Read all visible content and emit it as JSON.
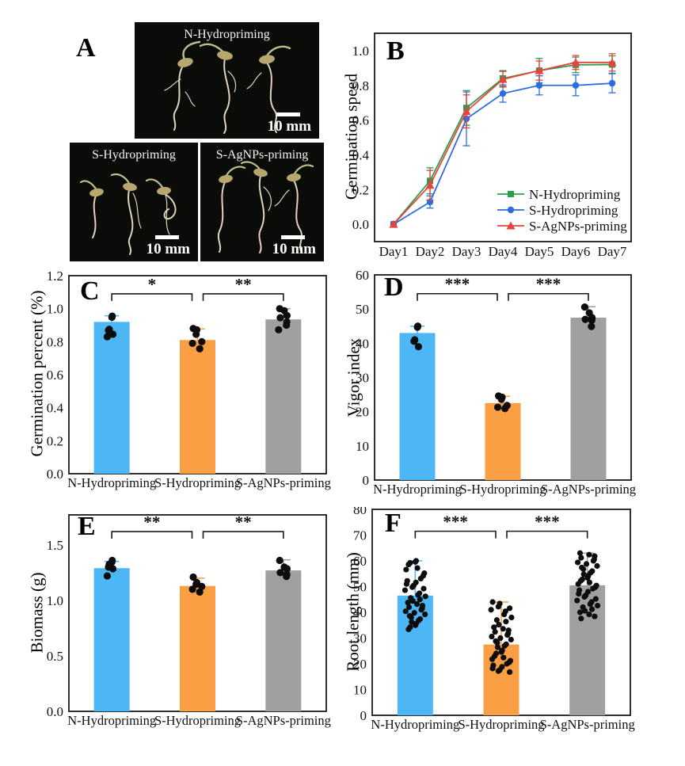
{
  "panel_labels": {
    "a": "A",
    "b": "B",
    "c": "C",
    "d": "D",
    "e": "E",
    "f": "F"
  },
  "photos": [
    {
      "title": "N-Hydropriming",
      "scale_text": "10 mm"
    },
    {
      "title": "S-Hydropriming",
      "scale_text": "10 mm"
    },
    {
      "title": "S-AgNPs-priming",
      "scale_text": "10 mm"
    }
  ],
  "colors": {
    "bar_blue": "#4db6f5",
    "bar_orange": "#fa9f44",
    "bar_gray": "#a0a0a0",
    "line_green": "#2e9d4b",
    "line_blue": "#2d6cdf",
    "line_red": "#e8433c",
    "dot_black": "#0d0d0d"
  },
  "chart_data": [
    {
      "svg": "chart-b",
      "panel": "B",
      "type": "line",
      "ylabel": "Germination speed",
      "x_categories": [
        "Day1",
        "Day2",
        "Day3",
        "Day4",
        "Day5",
        "Day6",
        "Day7"
      ],
      "ylim": [
        -0.1,
        1.1
      ],
      "yticks": [
        "0.0",
        "0.2",
        "0.4",
        "0.6",
        "0.8",
        "1.0"
      ],
      "grid": false,
      "legend_position": "bottom-right",
      "series": [
        {
          "name": "N-Hydropriming",
          "color": "#2e9d4b",
          "marker": "square",
          "values": [
            0.0,
            0.25,
            0.67,
            0.84,
            0.885,
            0.918,
            0.92
          ],
          "errors": [
            0.004,
            0.075,
            0.1,
            0.045,
            0.07,
            0.045,
            0.05
          ]
        },
        {
          "name": "S-Hydropriming",
          "color": "#2d6cdf",
          "marker": "circle",
          "values": [
            0.0,
            0.128,
            0.607,
            0.753,
            0.8,
            0.8,
            0.812
          ],
          "errors": [
            0.004,
            0.035,
            0.155,
            0.05,
            0.055,
            0.06,
            0.055
          ]
        },
        {
          "name": "S-AgNPs-priming",
          "color": "#e8433c",
          "marker": "triangle",
          "values": [
            0.0,
            0.225,
            0.65,
            0.835,
            0.885,
            0.932,
            0.932
          ],
          "errors": [
            0.004,
            0.085,
            0.095,
            0.045,
            0.055,
            0.04,
            0.05
          ]
        }
      ]
    },
    {
      "svg": "chart-c",
      "panel": "C",
      "type": "bar",
      "ylabel": "Germination percent (%)",
      "categories": [
        "N-Hydropriming",
        "S-Hydropriming",
        "S-AgNPs-priming"
      ],
      "values": [
        0.92,
        0.81,
        0.935
      ],
      "errors": [
        0.037,
        0.067,
        0.065
      ],
      "colors": [
        "#4db6f5",
        "#fa9f44",
        "#a0a0a0"
      ],
      "ylim": [
        0,
        1.2
      ],
      "yticks": [
        "0.0",
        "0.2",
        "0.4",
        "0.6",
        "0.8",
        "1.0",
        "1.2"
      ],
      "dot_values": [
        [
          0.955,
          0.948,
          0.875,
          0.868,
          0.845,
          0.83
        ],
        [
          0.88,
          0.872,
          0.845,
          0.8,
          0.79,
          0.757
        ],
        [
          1.0,
          0.988,
          0.958,
          0.945,
          0.92,
          0.9,
          0.872
        ]
      ],
      "significance": [
        {
          "from": 0,
          "to": 1,
          "label": "*",
          "y": 1.09
        },
        {
          "from": 1,
          "to": 2,
          "label": "**",
          "y": 1.09
        }
      ]
    },
    {
      "svg": "chart-d",
      "panel": "D",
      "type": "bar",
      "ylabel": "Vigor index",
      "categories": [
        "N-Hydropriming",
        "S-Hydropriming",
        "S-AgNPs-priming"
      ],
      "values": [
        43,
        22.5,
        47.5
      ],
      "errors": [
        2,
        2,
        3.2
      ],
      "colors": [
        "#4db6f5",
        "#fa9f44",
        "#a0a0a0"
      ],
      "ylim": [
        0,
        60
      ],
      "yticks": [
        "0",
        "10",
        "20",
        "30",
        "40",
        "50",
        "60"
      ],
      "dot_values": [
        [
          45.0,
          44.7,
          41.0,
          40.6,
          39.0
        ],
        [
          24.6,
          24.2,
          23.6,
          21.8,
          21.3,
          20.9
        ],
        [
          50.6,
          48.9,
          47.5,
          47.0,
          46.7,
          44.9
        ]
      ],
      "significance": [
        {
          "from": 0,
          "to": 1,
          "label": "***",
          "y": 54.5
        },
        {
          "from": 1,
          "to": 2,
          "label": "***",
          "y": 54.5
        }
      ]
    },
    {
      "svg": "chart-e",
      "panel": "E",
      "type": "bar",
      "ylabel": "Biomass (g)",
      "categories": [
        "N-Hydropriming",
        "S-Hydropriming",
        "S-AgNPs-priming"
      ],
      "values": [
        1.29,
        1.13,
        1.27
      ],
      "errors": [
        0.06,
        0.07,
        0.095
      ],
      "colors": [
        "#4db6f5",
        "#fa9f44",
        "#a0a0a0"
      ],
      "ylim": [
        0,
        1.77
      ],
      "yticks": [
        "0.0",
        "0.5",
        "1.0",
        "1.5"
      ],
      "dot_values": [
        [
          1.36,
          1.345,
          1.325,
          1.3,
          1.285,
          1.22
        ],
        [
          1.21,
          1.16,
          1.145,
          1.125,
          1.1,
          1.075
        ],
        [
          1.36,
          1.3,
          1.285,
          1.25,
          1.235,
          1.215
        ]
      ],
      "significance": [
        {
          "from": 0,
          "to": 1,
          "label": "**",
          "y": 1.62
        },
        {
          "from": 1,
          "to": 2,
          "label": "**",
          "y": 1.62
        }
      ]
    },
    {
      "svg": "chart-f",
      "panel": "F",
      "type": "bar",
      "ylabel": "Root length (mm)",
      "categories": [
        "N-Hydropriming",
        "S-Hydropriming",
        "S-AgNPs-priming"
      ],
      "values": [
        46.5,
        27.5,
        50.5
      ],
      "errors": [
        13.5,
        16.5,
        12.5
      ],
      "colors": [
        "#4db6f5",
        "#fa9f44",
        "#a0a0a0"
      ],
      "ylim": [
        0,
        80
      ],
      "yticks": [
        "0",
        "10",
        "20",
        "30",
        "40",
        "50",
        "60",
        "70",
        "80"
      ],
      "dot_values": [
        [
          60,
          59.6,
          59.2,
          58.6,
          57.2,
          56.6,
          55.2,
          54.2,
          53.1,
          52.2,
          51.6,
          51.0,
          50.4,
          49.8,
          49.2,
          48.6,
          47.4,
          46.8,
          46.2,
          45.6,
          45.0,
          44.4,
          43.8,
          43.2,
          42.6,
          42.0,
          41.5,
          41.0,
          40.4,
          39.8,
          39.2,
          38.6,
          38.0,
          37.4,
          36.8,
          36.2,
          35.6,
          35.0,
          34.2,
          33.4
        ],
        [
          44.0,
          43.4,
          42.2,
          41.6,
          41.0,
          40.4,
          39.2,
          38.0,
          37.0,
          36.4,
          35.2,
          34.2,
          33.6,
          33.0,
          32.4,
          31.8,
          31.2,
          30.6,
          30.0,
          29.4,
          28.8,
          28.2,
          27.6,
          27.0,
          26.4,
          25.2,
          24.6,
          24.0,
          23.0,
          22.4,
          21.8,
          21.2,
          20.6,
          20.0,
          19.4,
          18.8,
          18.2,
          17.6,
          17.2,
          16.8
        ],
        [
          63.0,
          62.4,
          61.8,
          61.2,
          60.6,
          60.0,
          59.4,
          58.8,
          58.0,
          57.4,
          56.8,
          56.0,
          55.4,
          54.8,
          54.2,
          53.4,
          52.8,
          52.2,
          51.6,
          51.0,
          50.4,
          49.8,
          49.2,
          48.6,
          48.0,
          47.2,
          46.6,
          46.0,
          45.2,
          44.6,
          44.0,
          43.2,
          42.6,
          42.0,
          41.2,
          40.6,
          40.0,
          39.2,
          38.4,
          37.6
        ]
      ],
      "significance": [
        {
          "from": 0,
          "to": 1,
          "label": "***",
          "y": 71.5
        },
        {
          "from": 1,
          "to": 2,
          "label": "***",
          "y": 71.5
        }
      ]
    }
  ]
}
